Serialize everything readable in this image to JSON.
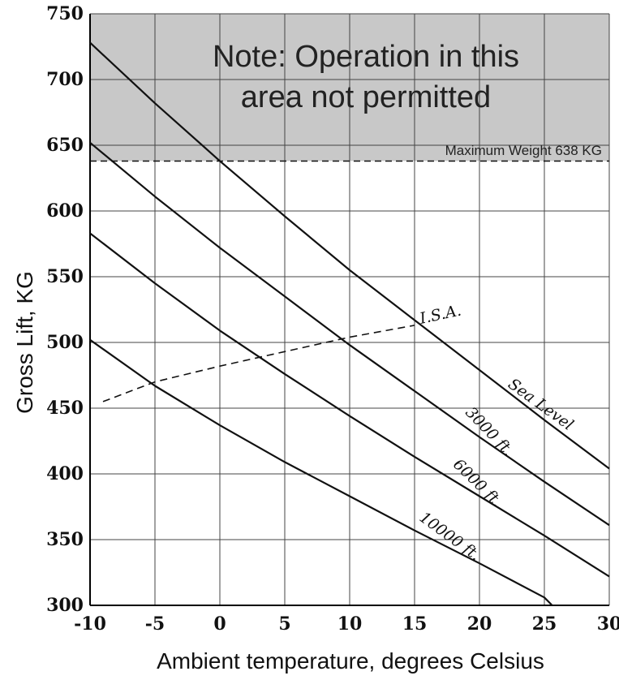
{
  "chart_data": {
    "type": "line",
    "xlabel": "Ambient temperature, degrees Celsius",
    "ylabel": "Gross Lift, KG",
    "xlim": [
      -10,
      30
    ],
    "ylim": [
      300,
      750
    ],
    "x_ticks": [
      -10,
      -5,
      0,
      5,
      10,
      15,
      20,
      25,
      30
    ],
    "y_ticks": [
      300,
      350,
      400,
      450,
      500,
      550,
      600,
      650,
      700,
      750
    ],
    "grid": true,
    "restricted_area": {
      "note_line1": "Note: Operation in this",
      "note_line2": "area not permitted",
      "y_from": 638,
      "y_to": 750,
      "color": "#c8c8c8"
    },
    "max_weight": {
      "label": "Maximum Weight 638 KG",
      "value": 638
    },
    "series": [
      {
        "name": "Sea Level",
        "label_angle": 36,
        "x": [
          -10,
          -5,
          0,
          5,
          10,
          15,
          20,
          25,
          30
        ],
        "y": [
          728,
          682,
          638,
          596,
          555,
          517,
          479,
          441,
          404
        ]
      },
      {
        "name": "3000 ft.",
        "label_angle": 46,
        "x": [
          -10,
          -5,
          0,
          5,
          10,
          15,
          20,
          25,
          30
        ],
        "y": [
          652,
          611,
          572,
          535,
          498,
          463,
          428,
          394,
          361
        ]
      },
      {
        "name": "6000 ft.",
        "label_angle": 44,
        "x": [
          -10,
          -5,
          0,
          5,
          10,
          15,
          20,
          25,
          30
        ],
        "y": [
          583,
          545,
          509,
          476,
          444,
          413,
          383,
          353,
          322
        ]
      },
      {
        "name": "10000 ft.",
        "label_angle": 36,
        "x": [
          -10,
          -5,
          0,
          5,
          10,
          15,
          20,
          25,
          25.6
        ],
        "y": [
          502,
          467,
          437,
          409,
          383,
          357,
          332,
          306,
          300
        ]
      }
    ],
    "isa": {
      "name": "I.S.A.",
      "x": [
        -9,
        -5,
        0,
        5,
        10,
        15
      ],
      "y": [
        455,
        470,
        482,
        493,
        504,
        513
      ]
    },
    "styles": {
      "curve_color": "#111111",
      "grid_color": "#444444",
      "shade_color": "#c8c8c8"
    }
  }
}
